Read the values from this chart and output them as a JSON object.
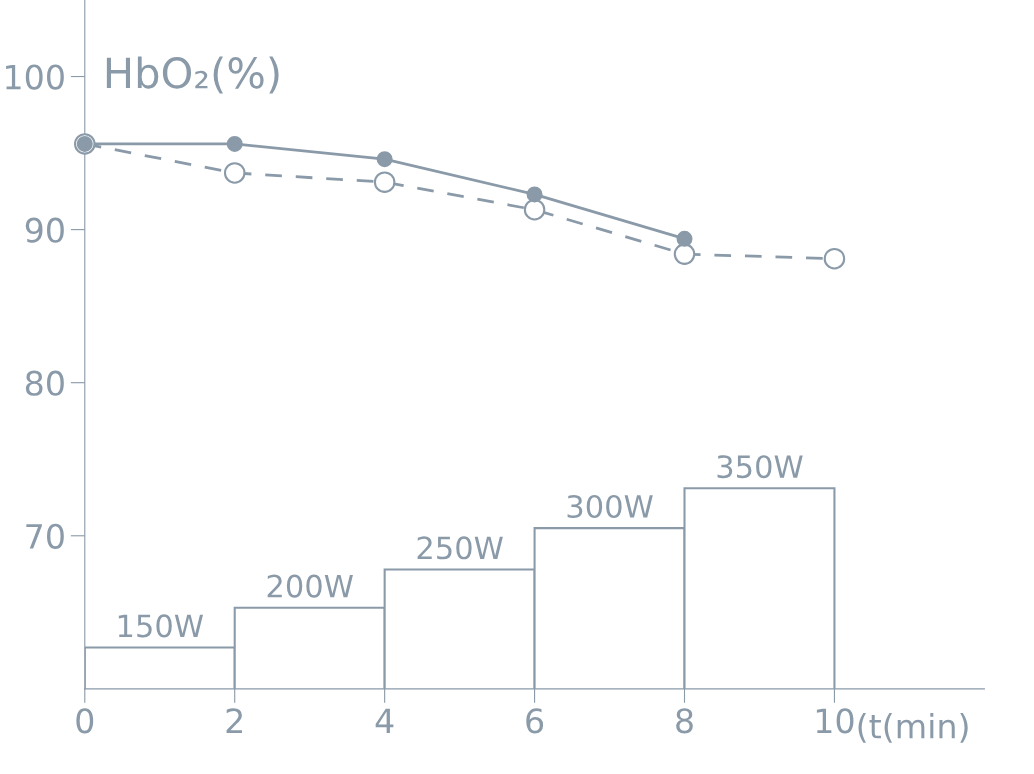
{
  "chart_data": {
    "type": "line",
    "ylabel": "HbO₂(%)",
    "xlabel": "(t(min)",
    "xlim": [
      0,
      12
    ],
    "ylim": [
      60,
      105
    ],
    "xticks": [
      0,
      2,
      4,
      6,
      8,
      10
    ],
    "yticks": [
      70,
      80,
      90,
      100
    ],
    "grid": false,
    "legend": false,
    "annotations": [
      {
        "text": "150W",
        "x": 1,
        "y": 62.7
      },
      {
        "text": "200W",
        "x": 3,
        "y": 65.3
      },
      {
        "text": "250W",
        "x": 5,
        "y": 67.8
      },
      {
        "text": "300W",
        "x": 7,
        "y": 70.5
      },
      {
        "text": "350W",
        "x": 9,
        "y": 73.1
      }
    ],
    "series": [
      {
        "type": "bar",
        "color": "#8a9aa8",
        "x": [
          1,
          3,
          5,
          7,
          9
        ],
        "values": [
          62.7,
          65.3,
          67.8,
          70.5,
          73.1
        ]
      },
      {
        "color": "#8a9aa8",
        "marker": "circle",
        "line_style": "solid",
        "x": [
          0,
          2,
          4,
          6,
          8
        ],
        "values": [
          95.6,
          95.6,
          94.6,
          92.3,
          89.4
        ]
      },
      {
        "color": "#8a9aa8",
        "marker": "circle",
        "line_style": "dashed",
        "x": [
          0,
          2,
          4,
          6,
          8,
          10
        ],
        "values": [
          95.6,
          93.7,
          93.1,
          91.3,
          88.4,
          88.1
        ]
      }
    ]
  }
}
